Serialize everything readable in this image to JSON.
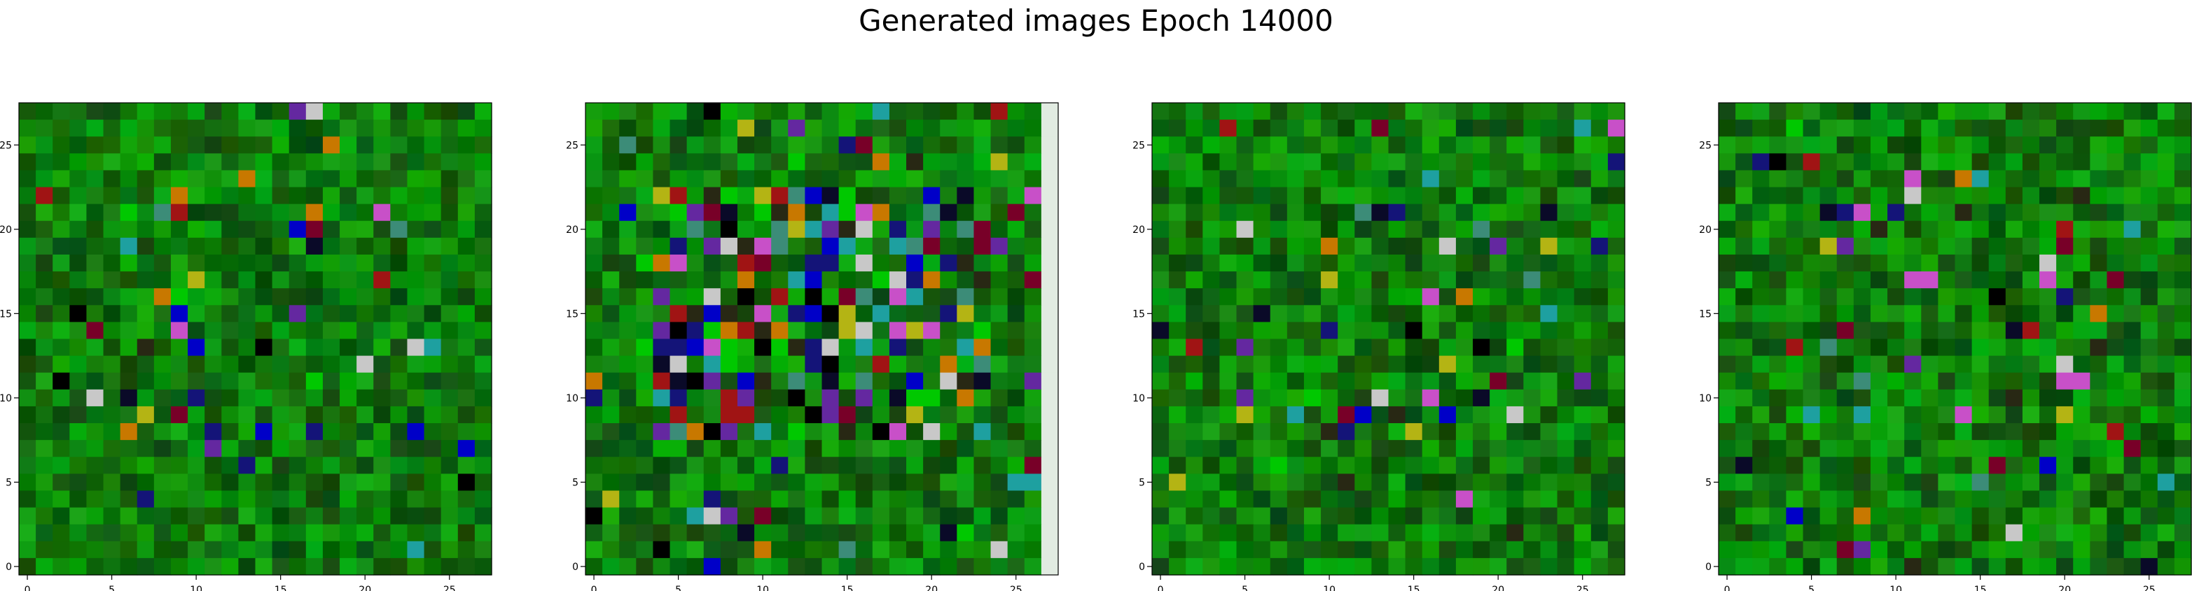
{
  "figure": {
    "title": "Generated images Epoch 14000"
  },
  "chart_data": [
    {
      "type": "heatmap",
      "title": "",
      "xlabel": "",
      "ylabel": "",
      "rows": 28,
      "cols": 28,
      "xlim": [
        -0.5,
        27.5
      ],
      "ylim": [
        27.5,
        -0.5
      ],
      "xticks": [
        0,
        5,
        10,
        15,
        20,
        25
      ],
      "yticks": [
        0,
        5,
        10,
        15,
        20,
        25
      ],
      "xtick_labels": [
        "0",
        "5",
        "10",
        "15",
        "20",
        "25"
      ],
      "ytick_labels": [
        "0",
        "5",
        "10",
        "15",
        "20",
        "25"
      ],
      "base_color": "#0a7a0a"
    },
    {
      "type": "heatmap",
      "title": "",
      "xlabel": "",
      "ylabel": "",
      "rows": 28,
      "cols": 28,
      "xlim": [
        -0.5,
        27.5
      ],
      "ylim": [
        27.5,
        -0.5
      ],
      "xticks": [
        0,
        5,
        10,
        15,
        20,
        25
      ],
      "yticks": [
        0,
        5,
        10,
        15,
        20,
        25
      ],
      "xtick_labels": [
        "0",
        "5",
        "10",
        "15",
        "20",
        "25"
      ],
      "ytick_labels": [
        "0",
        "5",
        "10",
        "15",
        "20",
        "25"
      ],
      "base_color": "#0a7a0a"
    },
    {
      "type": "heatmap",
      "title": "",
      "xlabel": "",
      "ylabel": "",
      "rows": 28,
      "cols": 28,
      "xlim": [
        -0.5,
        27.5
      ],
      "ylim": [
        27.5,
        -0.5
      ],
      "xticks": [
        0,
        5,
        10,
        15,
        20,
        25
      ],
      "yticks": [
        0,
        5,
        10,
        15,
        20,
        25
      ],
      "xtick_labels": [
        "0",
        "5",
        "10",
        "15",
        "20",
        "25"
      ],
      "ytick_labels": [
        "0",
        "5",
        "10",
        "15",
        "20",
        "25"
      ],
      "base_color": "#0a7a0a"
    },
    {
      "type": "heatmap",
      "title": "",
      "xlabel": "",
      "ylabel": "",
      "rows": 28,
      "cols": 28,
      "xlim": [
        -0.5,
        27.5
      ],
      "ylim": [
        27.5,
        -0.5
      ],
      "xticks": [
        0,
        5,
        10,
        15,
        20,
        25
      ],
      "yticks": [
        0,
        5,
        10,
        15,
        20,
        25
      ],
      "xtick_labels": [
        "0",
        "5",
        "10",
        "15",
        "20",
        "25"
      ],
      "ytick_labels": [
        "0",
        "5",
        "10",
        "15",
        "20",
        "25"
      ],
      "base_color": "#0a7a0a"
    }
  ]
}
